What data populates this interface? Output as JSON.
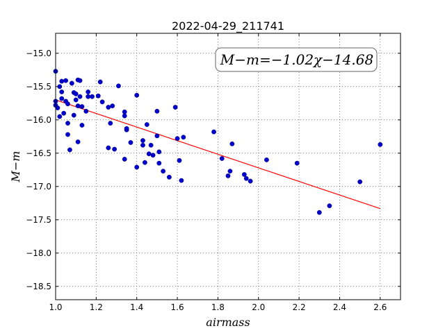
{
  "chart_data": {
    "type": "scatter",
    "title": "2022-04-29_211741",
    "xlabel": "airmass",
    "ylabel": "M−m",
    "xlim": [
      1.0,
      2.7
    ],
    "ylim": [
      -14.7,
      -18.7
    ],
    "y_inverted": true,
    "grid": true,
    "grid_style": "dotted",
    "xticks": [
      1.0,
      1.2,
      1.4,
      1.6,
      1.8,
      2.0,
      2.2,
      2.4,
      2.6
    ],
    "xtick_labels": [
      "1.0",
      "1.2",
      "1.4",
      "1.6",
      "1.8",
      "2.0",
      "2.2",
      "2.4",
      "2.6"
    ],
    "yticks": [
      -15.0,
      -15.5,
      -16.0,
      -16.5,
      -17.0,
      -17.5,
      -18.0,
      -18.5
    ],
    "ytick_labels": [
      "−15.0",
      "−15.5",
      "−16.0",
      "−16.5",
      "−17.0",
      "−17.5",
      "−18.0",
      "−18.5"
    ],
    "annotation": "M−m=−1.02χ−14.68",
    "point_color": "#0000cc",
    "fit_color": "#ff0000",
    "series": [
      {
        "kind": "points",
        "points": [
          [
            1.0,
            -15.27
          ],
          [
            1.0,
            -15.72
          ],
          [
            1.0,
            -15.78
          ],
          [
            1.01,
            -15.82
          ],
          [
            1.02,
            -15.95
          ],
          [
            1.02,
            -15.5
          ],
          [
            1.03,
            -15.58
          ],
          [
            1.03,
            -15.68
          ],
          [
            1.03,
            -15.42
          ],
          [
            1.04,
            -15.9
          ],
          [
            1.05,
            -15.41
          ],
          [
            1.05,
            -15.72
          ],
          [
            1.06,
            -15.76
          ],
          [
            1.06,
            -16.05
          ],
          [
            1.06,
            -16.22
          ],
          [
            1.07,
            -16.45
          ],
          [
            1.08,
            -15.45
          ],
          [
            1.09,
            -15.93
          ],
          [
            1.09,
            -15.59
          ],
          [
            1.1,
            -15.61
          ],
          [
            1.1,
            -15.7
          ],
          [
            1.11,
            -15.4
          ],
          [
            1.11,
            -15.79
          ],
          [
            1.11,
            -16.33
          ],
          [
            1.12,
            -15.65
          ],
          [
            1.12,
            -15.41
          ],
          [
            1.13,
            -15.8
          ],
          [
            1.13,
            -16.08
          ],
          [
            1.15,
            -15.87
          ],
          [
            1.16,
            -15.58
          ],
          [
            1.16,
            -15.65
          ],
          [
            1.18,
            -15.65
          ],
          [
            1.21,
            -15.64
          ],
          [
            1.22,
            -15.43
          ],
          [
            1.23,
            -15.73
          ],
          [
            1.26,
            -15.81
          ],
          [
            1.26,
            -16.42
          ],
          [
            1.27,
            -16.05
          ],
          [
            1.28,
            -15.79
          ],
          [
            1.29,
            -16.44
          ],
          [
            1.31,
            -15.49
          ],
          [
            1.34,
            -15.88
          ],
          [
            1.34,
            -15.94
          ],
          [
            1.34,
            -16.59
          ],
          [
            1.35,
            -16.15
          ],
          [
            1.35,
            -16.13
          ],
          [
            1.37,
            -16.34
          ],
          [
            1.4,
            -16.71
          ],
          [
            1.4,
            -15.63
          ],
          [
            1.43,
            -16.31
          ],
          [
            1.43,
            -16.38
          ],
          [
            1.44,
            -16.64
          ],
          [
            1.45,
            -16.07
          ],
          [
            1.46,
            -16.51
          ],
          [
            1.47,
            -16.38
          ],
          [
            1.48,
            -16.53
          ],
          [
            1.5,
            -15.87
          ],
          [
            1.5,
            -16.24
          ],
          [
            1.51,
            -16.65
          ],
          [
            1.51,
            -16.48
          ],
          [
            1.53,
            -16.77
          ],
          [
            1.56,
            -16.86
          ],
          [
            1.59,
            -15.81
          ],
          [
            1.6,
            -16.28
          ],
          [
            1.61,
            -16.61
          ],
          [
            1.62,
            -16.91
          ],
          [
            1.63,
            -16.26
          ],
          [
            1.78,
            -16.18
          ],
          [
            1.82,
            -16.58
          ],
          [
            1.85,
            -16.84
          ],
          [
            1.86,
            -16.77
          ],
          [
            1.87,
            -16.36
          ],
          [
            1.93,
            -16.82
          ],
          [
            1.94,
            -16.88
          ],
          [
            1.96,
            -16.92
          ],
          [
            2.04,
            -16.6
          ],
          [
            2.19,
            -16.65
          ],
          [
            2.3,
            -17.39
          ],
          [
            2.35,
            -17.29
          ],
          [
            2.5,
            -16.93
          ],
          [
            2.6,
            -16.37
          ]
        ]
      },
      {
        "kind": "fit_line",
        "slope": -1.02,
        "intercept": -14.68,
        "x_range": [
          1.0,
          2.6
        ]
      }
    ]
  }
}
